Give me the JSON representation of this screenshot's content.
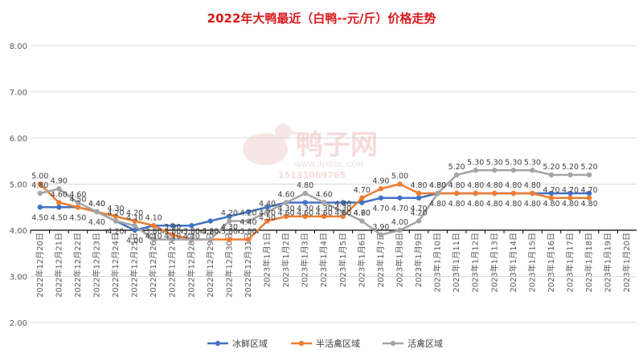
{
  "chart_data": {
    "type": "line",
    "title": "2022年大鸭最近（白鸭--元/斤）价格走势",
    "categories": [
      "2022年12月20日",
      "2022年12月21日",
      "2022年12月22日",
      "2022年12月23日",
      "2022年12月24日",
      "2022年12月25日",
      "2022年12月26日",
      "2022年12月27日",
      "2022年12月28日",
      "2022年12月29日",
      "2022年12月30日",
      "2022年12月31日",
      "2023年1月1日",
      "2023年1月2日",
      "2023年1月3日",
      "2023年1月4日",
      "2023年1月5日",
      "2023年1月6日",
      "2023年1月7日",
      "2023年1月8日",
      "2023年1月9日",
      "2023年1月10日",
      "2023年1月11日",
      "2023年1月12日",
      "2023年1月13日",
      "2023年1月14日",
      "2023年1月15日",
      "2023年1月16日",
      "2023年1月17日",
      "2023年1月18日",
      "2023年1月19日",
      "2023年1月20日"
    ],
    "ylim": [
      2.0,
      8.0
    ],
    "yticks": [
      "2.00",
      "3.00",
      "4.00",
      "5.00",
      "6.00",
      "7.00",
      "8.00"
    ],
    "grid": true,
    "legend_position": "bottom",
    "series": [
      {
        "name": "冰鲜区域",
        "color": "#4472c4",
        "values": [
          4.5,
          4.5,
          4.5,
          4.4,
          4.2,
          4.0,
          4.1,
          4.1,
          4.1,
          4.2,
          4.3,
          4.4,
          4.5,
          4.6,
          4.6,
          4.6,
          4.6,
          4.6,
          4.7,
          4.7,
          4.7,
          4.8,
          4.8,
          4.8,
          4.8,
          4.8,
          4.8,
          4.8,
          4.8,
          4.8,
          null,
          null
        ],
        "labels": [
          "4.50",
          "4.50",
          "4.50",
          "4.40",
          "4.20",
          "4.00",
          "4.10",
          "4.10",
          "4.10",
          "4.20",
          "4.30",
          "4.40",
          "4.50",
          "4.60",
          "4.60",
          "4.60",
          "4.60",
          "4.60",
          "4.70",
          "4.70",
          "4.70",
          "4.80",
          "4.80",
          "4.80",
          "4.80",
          "4.80",
          "4.80",
          "4.80",
          "4.80",
          "4.80",
          "",
          ""
        ]
      },
      {
        "name": "半活禽区域",
        "color": "#ed7d31",
        "values": [
          5.0,
          4.6,
          4.5,
          4.4,
          4.3,
          4.2,
          4.1,
          3.9,
          3.8,
          3.8,
          3.8,
          3.8,
          4.2,
          4.3,
          4.3,
          4.3,
          4.3,
          4.7,
          4.9,
          5.0,
          4.8,
          4.8,
          4.8,
          4.8,
          4.8,
          4.8,
          4.8,
          4.7,
          4.7,
          4.7,
          null,
          null
        ],
        "labels": [
          "5.00",
          "4.60",
          "4.50",
          "4.40",
          "4.30",
          "4.20",
          "4.10",
          "3.90",
          "3.80",
          "3.80",
          "3.80",
          "3.80",
          "4.20",
          "4.30",
          "4.30",
          "4.30",
          "4.30",
          "4.70",
          "4.90",
          "5.00",
          "4.80",
          "4.80",
          "4.80",
          "4.80",
          "4.80",
          "4.80",
          "4.80",
          "4.70",
          "4.70",
          "4.70",
          "",
          ""
        ]
      },
      {
        "name": "活禽区域",
        "color": "#a5a5a5",
        "values": [
          4.8,
          4.9,
          4.6,
          4.4,
          4.2,
          4.1,
          3.8,
          3.8,
          3.8,
          3.8,
          4.2,
          4.2,
          4.4,
          4.6,
          4.8,
          4.6,
          4.4,
          4.2,
          3.9,
          4.0,
          4.2,
          4.8,
          5.2,
          5.3,
          5.3,
          5.3,
          5.3,
          5.2,
          5.2,
          5.2,
          null,
          null
        ],
        "labels": [
          "4.80",
          "4.90",
          "4.60",
          "4.40",
          "4.20",
          "4.10",
          "3.80",
          "3.80",
          "3.80",
          "3.80",
          "4.20",
          "4.20",
          "4.40",
          "4.60",
          "4.80",
          "4.60",
          "4.40",
          "4.20",
          "3.90",
          "4.00",
          "4.20",
          "4.80",
          "5.20",
          "5.30",
          "5.30",
          "5.30",
          "5.30",
          "5.20",
          "5.20",
          "5.20",
          "",
          ""
        ]
      }
    ]
  },
  "watermark": {
    "brand": "鸭子网",
    "site": "WWW.INTEDC.COM",
    "phone": "15131069765"
  }
}
